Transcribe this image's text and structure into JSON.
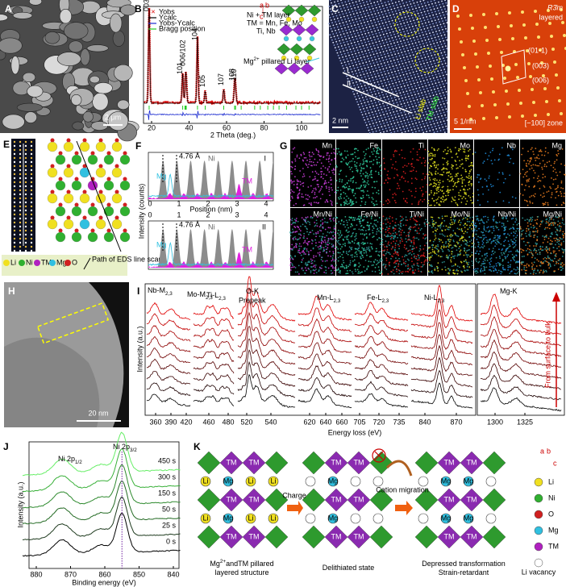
{
  "panels": {
    "A": {
      "label": "A",
      "scale_bar": "2 μm"
    },
    "B": {
      "label": "B",
      "legend": [
        "Yobs",
        "Ycalc",
        "Yobs-Ycalc",
        "Bragg position"
      ],
      "peaks": [
        "003",
        "101",
        "006/102",
        "104",
        "105",
        "107",
        "108",
        "110"
      ],
      "x_ticks": [
        20,
        40,
        60,
        80,
        100
      ],
      "x_label": "2 Theta (deg.)",
      "axes": [
        "a",
        "b",
        "c"
      ],
      "layer_labels": [
        "Ni + TM layer",
        "TM = Mn, Fe, Mo",
        "Ti, Nb"
      ],
      "pillar_label": {
        "main": "Mg",
        "sup": "2+",
        "rest": " pillared Li layer"
      }
    },
    "C": {
      "label": "C",
      "lines": [
        "I",
        "II"
      ],
      "scale_bar": "2 nm",
      "slabs": [
        "Li slab",
        "TM slab"
      ]
    },
    "D": {
      "label": "D",
      "space_group": "R3̄m",
      "structure": "layered",
      "spots": [
        "(01-1)",
        "(003)",
        "(006)"
      ],
      "scale_bar": "5 1/nm",
      "zone": "[−100] zone"
    },
    "E": {
      "label": "E",
      "legend": [
        "Li",
        "Ni",
        "TM",
        "Mg",
        "O"
      ],
      "path_label": "Path of EDS line scan"
    },
    "F": {
      "label": "F",
      "scans": [
        "I",
        "II"
      ],
      "spacing": "4.76 Å",
      "species": [
        "Mg",
        "Ni",
        "TM"
      ],
      "x_ticks": [
        0,
        1,
        2,
        3,
        4
      ],
      "x_label": "Position (nm)",
      "y_label": "Intensity (counts)"
    },
    "G": {
      "label": "G",
      "maps": [
        "Mn",
        "Fe",
        "Ti",
        "Mo",
        "Nb",
        "Mg"
      ],
      "ratios": [
        "Mn/Ni",
        "Fe/Ni",
        "Ti/Ni",
        "Mo/Ni",
        "Nb/Ni",
        "Mg/Ni"
      ]
    },
    "H": {
      "label": "H",
      "scale_bar": "20 nm"
    },
    "I": {
      "label": "I",
      "edges": [
        {
          "main": "Nb-M",
          "sub": "2,3"
        },
        {
          "main": "Mo-M",
          "sub": "2,3"
        },
        {
          "main": "Ti-L",
          "sub": "2,3"
        },
        {
          "main": "O-K"
        },
        {
          "main": "Mn-L",
          "sub": "2,3"
        },
        {
          "main": "Fe-L",
          "sub": "2,3"
        },
        {
          "main": "Ni-L",
          "sub": "2,3"
        },
        {
          "main": "Mg-K"
        }
      ],
      "prepeak": "Prepeak",
      "x_ticks": [
        360,
        390,
        420,
        460,
        480,
        520,
        540,
        620,
        640,
        660,
        705,
        720,
        735,
        840,
        870,
        1300,
        1325
      ],
      "x_label": "Energy loss (eV)",
      "y_label": "Intensity (a.u.)",
      "direction": "From surface to bulk"
    },
    "J": {
      "label": "J",
      "peaks": [
        {
          "main": "Ni 2p",
          "sub": "1/2"
        },
        {
          "main": "Ni 2p",
          "sub": "3/2"
        }
      ],
      "times": [
        "450 s",
        "300 s",
        "150 s",
        "50 s",
        "25 s",
        "0 s"
      ],
      "x_ticks": [
        880,
        870,
        860,
        850,
        840
      ],
      "x_label": "Binding energy (eV)",
      "y_label": "Intensity (a.u.)"
    },
    "K": {
      "label": "K",
      "steps": [
        "Charge",
        "Cation migration"
      ],
      "captions": [
        [
          {
            "main": "Mg",
            "sup": "2+",
            "rest": "andTM pillared"
          },
          {
            "main": "layered structure"
          }
        ],
        [
          {
            "main": "Delithiated state"
          }
        ],
        [
          {
            "main": "Depressed transformation"
          },
          {
            "main": "Strain-retardant"
          }
        ]
      ],
      "axes": [
        "a",
        "b",
        "c"
      ],
      "legend": [
        "Li",
        "Ni",
        "O",
        "Mg",
        "TM",
        "Li vacancy"
      ]
    }
  }
}
